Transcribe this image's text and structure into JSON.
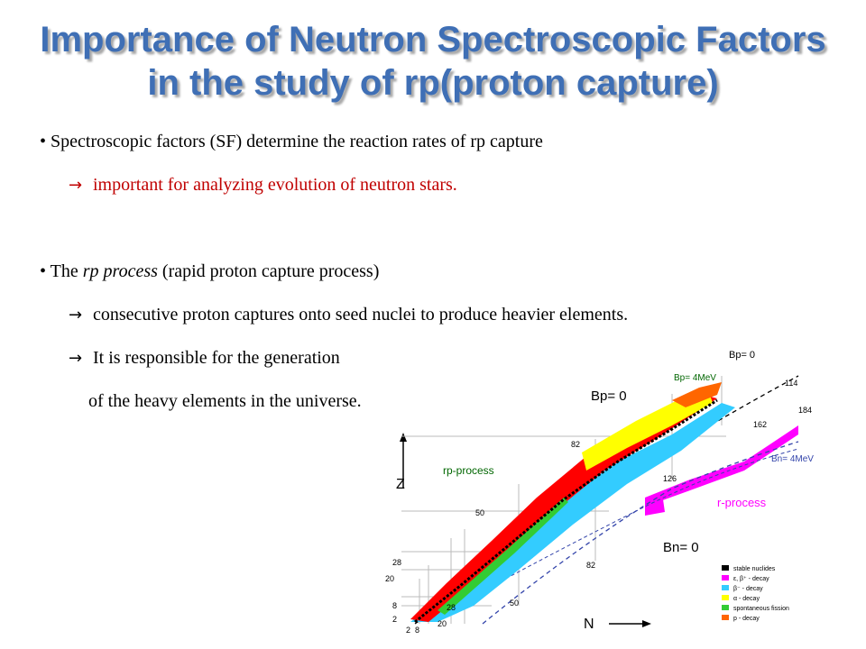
{
  "slide": {
    "title_line1": "Importance of Neutron Spectroscopic Factors",
    "title_line2": "in the study of rp(proton capture)",
    "bullets": {
      "b1_text": "Spectroscopic factors (SF) determine the reaction rates of rp capture",
      "b1_sub": "important for analyzing evolution of neutron stars.",
      "b2_pre": "The ",
      "b2_em": "rp process",
      "b2_post": " (rapid proton capture process)",
      "b2_sub1": "consecutive proton captures onto seed nuclei to produce heavier elements.",
      "b2_sub2": "It is responsible for the generation",
      "b2_sub3": "of the heavy elements in the universe."
    },
    "bullet_glyph": "•",
    "arrow_glyph": "→"
  },
  "chart": {
    "axis_z": "Z",
    "axis_n": "N",
    "bp0_top": "Bp= 0",
    "bp0": "Bp= 0",
    "bp4_top": "Bp= 4MeV",
    "bn4": "Bn= 4MeV",
    "bn0": "Bn= 0",
    "rp_label": "rp-process",
    "r_label": "r-process",
    "magic": {
      "z8": "8",
      "z2": "2",
      "z20": "20",
      "z28": "28",
      "z50": "50",
      "z82": "82",
      "n2": "2",
      "n8": "8",
      "n20": "20",
      "n28": "28",
      "n50": "50",
      "n82": "82",
      "n126": "126",
      "n162": "162",
      "n184": "184",
      "z114": "114"
    },
    "legend": [
      {
        "label": "stable nuclides",
        "color": "#000000"
      },
      {
        "label": "ε, β⁺ - decay",
        "color": "#ff00ff"
      },
      {
        "label": "β⁻ - decay",
        "color": "#33ccff"
      },
      {
        "label": "α - decay",
        "color": "#ffff00"
      },
      {
        "label": "spontaneous fission",
        "color": "#33cc33"
      },
      {
        "label": "p - decay",
        "color": "#ff6600"
      }
    ],
    "colors": {
      "red": "#ff0000",
      "magenta": "#ff00ff",
      "cyan": "#33ccff",
      "yellow": "#ffff00",
      "green": "#33cc33",
      "orange": "#ff6600",
      "dashed": "#3344aa"
    }
  }
}
